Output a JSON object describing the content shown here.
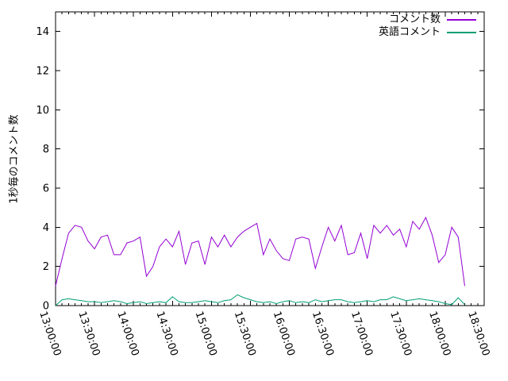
{
  "chart_data": {
    "type": "line",
    "title": "",
    "ylabel": "1秒毎のコメント数",
    "xlabel": "",
    "grid": false,
    "legend_position": "top-right-inside",
    "ylim": [
      0,
      15
    ],
    "yticks": [
      0,
      2,
      4,
      6,
      8,
      10,
      12,
      14
    ],
    "xlim_minutes": [
      0,
      330
    ],
    "x_axis_start_time": "13:00:00",
    "xtick_labels": [
      "13:00:00",
      "13:30:00",
      "14:00:00",
      "14:30:00",
      "15:00:00",
      "15:30:00",
      "16:00:00",
      "16:30:00",
      "17:00:00",
      "17:30:00",
      "18:00:00",
      "18:30:00"
    ],
    "xtick_minutes": [
      0,
      30,
      60,
      90,
      120,
      150,
      180,
      210,
      240,
      270,
      300,
      330
    ],
    "minor_xtick_interval_minutes": 5,
    "x_minutes": [
      0,
      5,
      10,
      15,
      20,
      25,
      30,
      35,
      40,
      45,
      50,
      55,
      60,
      65,
      70,
      75,
      80,
      85,
      90,
      95,
      100,
      105,
      110,
      115,
      120,
      125,
      130,
      135,
      140,
      145,
      150,
      155,
      160,
      165,
      170,
      175,
      180,
      185,
      190,
      195,
      200,
      205,
      210,
      215,
      220,
      225,
      230,
      235,
      240,
      245,
      250,
      255,
      260,
      265,
      270,
      275,
      280,
      285,
      290,
      295,
      300,
      305,
      310,
      315
    ],
    "series": [
      {
        "name": "コメント数",
        "color": "#9400d3",
        "values": [
          1.0,
          2.4,
          3.7,
          4.1,
          4.0,
          3.3,
          2.9,
          3.5,
          3.6,
          2.6,
          2.6,
          3.2,
          3.3,
          3.5,
          1.5,
          2.0,
          3.0,
          3.4,
          3.0,
          3.8,
          2.1,
          3.2,
          3.3,
          2.1,
          3.5,
          3.0,
          3.6,
          3.0,
          3.5,
          3.8,
          4.0,
          4.2,
          2.6,
          3.4,
          2.8,
          2.4,
          2.3,
          3.4,
          3.5,
          3.4,
          1.9,
          3.0,
          4.0,
          3.3,
          4.1,
          2.6,
          2.7,
          3.7,
          2.4,
          4.1,
          3.7,
          4.1,
          3.6,
          3.9,
          3.0,
          4.3,
          3.9,
          4.5,
          3.6,
          2.2,
          2.6,
          4.0,
          3.5,
          1.0
        ]
      },
      {
        "name": "英語コメント",
        "color": "#009e73",
        "values": [
          0.0,
          0.3,
          0.35,
          0.3,
          0.25,
          0.2,
          0.2,
          0.15,
          0.2,
          0.25,
          0.2,
          0.1,
          0.15,
          0.2,
          0.1,
          0.15,
          0.2,
          0.15,
          0.45,
          0.2,
          0.15,
          0.15,
          0.2,
          0.25,
          0.2,
          0.15,
          0.25,
          0.3,
          0.55,
          0.4,
          0.3,
          0.2,
          0.15,
          0.2,
          0.1,
          0.2,
          0.25,
          0.15,
          0.2,
          0.15,
          0.3,
          0.2,
          0.25,
          0.3,
          0.3,
          0.2,
          0.15,
          0.2,
          0.25,
          0.2,
          0.3,
          0.3,
          0.45,
          0.35,
          0.25,
          0.3,
          0.35,
          0.3,
          0.25,
          0.2,
          0.1,
          0.05,
          0.4,
          0.05
        ]
      }
    ]
  }
}
